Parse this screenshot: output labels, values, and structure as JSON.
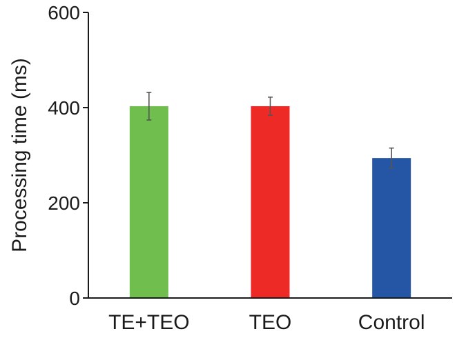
{
  "chart_data": {
    "type": "bar",
    "title": "",
    "xlabel": "",
    "ylabel": "Processing time (ms)",
    "categories": [
      "TE+TEO",
      "TEO",
      "Control"
    ],
    "values": [
      403,
      403,
      294
    ],
    "errors": [
      29,
      19,
      21
    ],
    "colors": [
      "#70bf4e",
      "#ee2a27",
      "#2456a5"
    ],
    "ylim": [
      0,
      600
    ],
    "yticks": [
      0,
      200,
      400,
      600
    ],
    "grid": false,
    "legend": "none"
  }
}
